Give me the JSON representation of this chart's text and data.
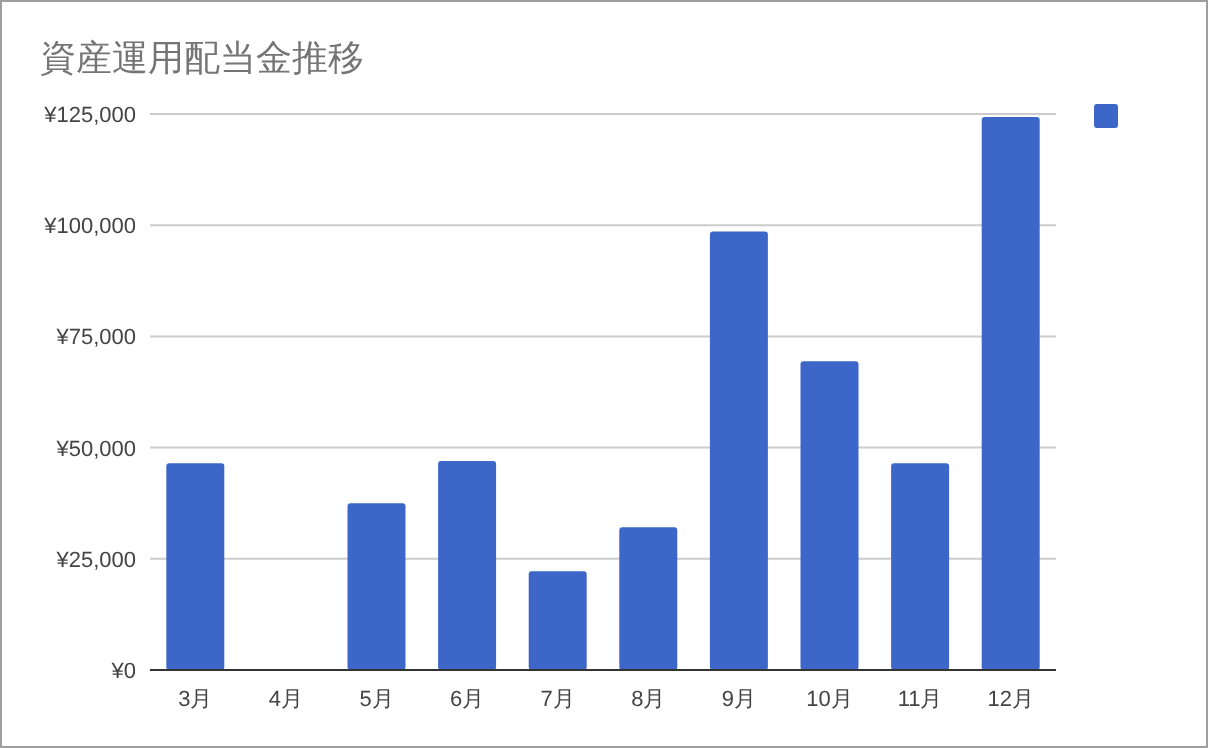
{
  "chart_data": {
    "type": "bar",
    "title": "資産運用配当金推移",
    "categories": [
      "3月",
      "4月",
      "5月",
      "6月",
      "7月",
      "8月",
      "9月",
      "10月",
      "11月",
      "12月"
    ],
    "values": [
      46500,
      0,
      37500,
      47000,
      22200,
      32100,
      98600,
      69400,
      46500,
      124300
    ],
    "color": "#3c66c8",
    "ylim": [
      0,
      125000
    ],
    "yticks": [
      {
        "value": 0,
        "label": "¥0"
      },
      {
        "value": 25000,
        "label": "¥25,000"
      },
      {
        "value": 50000,
        "label": "¥50,000"
      },
      {
        "value": 75000,
        "label": "¥75,000"
      },
      {
        "value": 100000,
        "label": "¥100,000"
      },
      {
        "value": 125000,
        "label": "¥125,000"
      }
    ],
    "grid": "y"
  }
}
